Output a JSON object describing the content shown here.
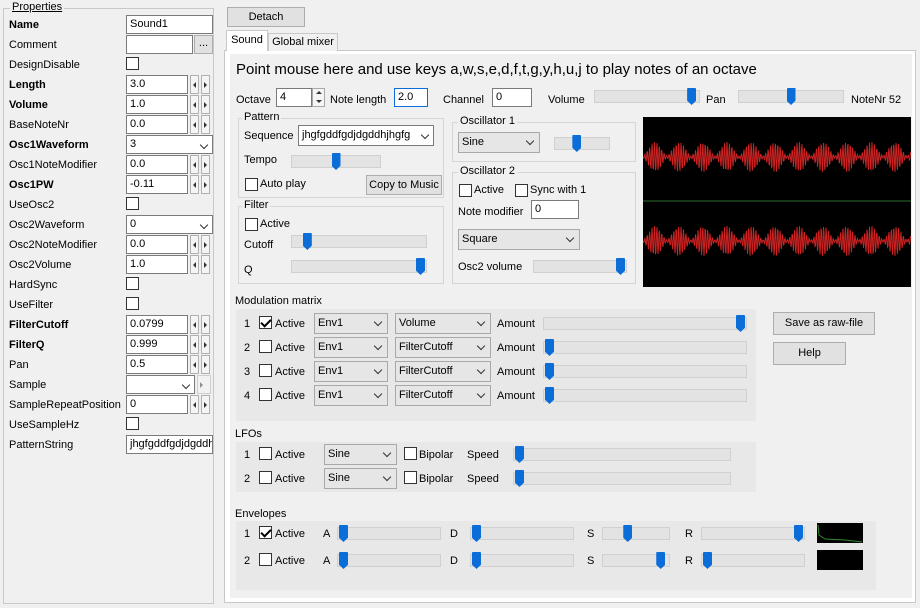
{
  "properties": {
    "title": "Properties",
    "rows": [
      {
        "label": "Name",
        "bold": true,
        "value": "Sound1",
        "kind": "text"
      },
      {
        "label": "Comment",
        "bold": false,
        "value": "",
        "kind": "textbtn",
        "btn": "..."
      },
      {
        "label": "DesignDisable",
        "bold": false,
        "kind": "check",
        "checked": false
      },
      {
        "label": "Length",
        "bold": true,
        "value": "3.0",
        "kind": "spin"
      },
      {
        "label": "Volume",
        "bold": true,
        "value": "1.0",
        "kind": "spin"
      },
      {
        "label": "BaseNoteNr",
        "bold": false,
        "value": "0.0",
        "kind": "spin"
      },
      {
        "label": "Osc1Waveform",
        "bold": true,
        "value": "3",
        "kind": "combo"
      },
      {
        "label": "Osc1NoteModifier",
        "bold": false,
        "value": "0.0",
        "kind": "spin"
      },
      {
        "label": "Osc1PW",
        "bold": true,
        "value": "-0.11",
        "kind": "spin"
      },
      {
        "label": "UseOsc2",
        "bold": false,
        "kind": "check",
        "checked": false
      },
      {
        "label": "Osc2Waveform",
        "bold": false,
        "value": "0",
        "kind": "combo"
      },
      {
        "label": "Osc2NoteModifier",
        "bold": false,
        "value": "0.0",
        "kind": "spin"
      },
      {
        "label": "Osc2Volume",
        "bold": false,
        "value": "1.0",
        "kind": "spin"
      },
      {
        "label": "HardSync",
        "bold": false,
        "kind": "check",
        "checked": false
      },
      {
        "label": "UseFilter",
        "bold": false,
        "kind": "check",
        "checked": false
      },
      {
        "label": "FilterCutoff",
        "bold": true,
        "value": "0.0799",
        "kind": "spin"
      },
      {
        "label": "FilterQ",
        "bold": true,
        "value": "0.999",
        "kind": "spin"
      },
      {
        "label": "Pan",
        "bold": false,
        "value": "0.5",
        "kind": "spin"
      },
      {
        "label": "Sample",
        "bold": false,
        "value": "",
        "kind": "combogray"
      },
      {
        "label": "SampleRepeatPosition",
        "bold": false,
        "value": "0",
        "kind": "spin"
      },
      {
        "label": "UseSampleHz",
        "bold": false,
        "kind": "check",
        "checked": false
      },
      {
        "label": "PatternString",
        "bold": false,
        "value": "jhgfgddfgdjdgddh",
        "kind": "text"
      }
    ]
  },
  "detach_label": "Detach",
  "tabs": [
    {
      "label": "Sound",
      "active": true
    },
    {
      "label": "Global mixer",
      "active": false
    }
  ],
  "instruction": "Point mouse here and use keys a,w,s,e,d,f,t,g,y,h,u,j to play notes of an octave",
  "top": {
    "octave_label": "Octave",
    "octave": "4",
    "notelength_label": "Note length",
    "notelength": "2.0",
    "channel_label": "Channel",
    "channel": "0",
    "volume_label": "Volume",
    "volume_level": 0.98,
    "pan_label": "Pan",
    "pan_level": 0.5,
    "notenr_label": "NoteNr 52"
  },
  "pattern": {
    "title": "Pattern",
    "sequence_label": "Sequence",
    "sequence": "jhgfgddfgdjdgddhjhgfg",
    "tempo_label": "Tempo",
    "tempo_level": 0.5,
    "autoplay_label": "Auto play",
    "autoplay": false,
    "copy_label": "Copy to Music"
  },
  "filter": {
    "title": "Filter",
    "active_label": "Active",
    "active": false,
    "cutoff_label": "Cutoff",
    "cutoff_level": 0.08,
    "q_label": "Q",
    "q_level": 1.0
  },
  "osc1": {
    "title": "Oscillator 1",
    "waveform": "Sine",
    "level": 0.38
  },
  "osc2": {
    "title": "Oscillator 2",
    "active_label": "Active",
    "active": false,
    "sync_label": "Sync with 1",
    "sync": false,
    "notemod_label": "Note modifier",
    "notemod": "0",
    "waveform": "Square",
    "vol_label": "Osc2 volume",
    "vol_level": 1.0
  },
  "modulation": {
    "title": "Modulation matrix",
    "amount_label": "Amount",
    "active_label": "Active",
    "rows": [
      {
        "n": "1",
        "active": true,
        "source": "Env1",
        "target": "Volume",
        "level": 1.0
      },
      {
        "n": "2",
        "active": false,
        "source": "Env1",
        "target": "FilterCutoff",
        "level": 0.0
      },
      {
        "n": "3",
        "active": false,
        "source": "Env1",
        "target": "FilterCutoff",
        "level": 0.0
      },
      {
        "n": "4",
        "active": false,
        "source": "Env1",
        "target": "FilterCutoff",
        "level": 0.0
      }
    ]
  },
  "save_raw_label": "Save as raw-file",
  "help_label": "Help",
  "lfos": {
    "title": "LFOs",
    "active_label": "Active",
    "bipolar_label": "Bipolar",
    "speed_label": "Speed",
    "rows": [
      {
        "n": "1",
        "active": false,
        "wave": "Sine",
        "bipolar": false,
        "speed_level": 0.0
      },
      {
        "n": "2",
        "active": false,
        "wave": "Sine",
        "bipolar": false,
        "speed_level": 0.0
      }
    ]
  },
  "envelopes": {
    "title": "Envelopes",
    "active_label": "Active",
    "a": "A",
    "d": "D",
    "s": "S",
    "r": "R",
    "rows": [
      {
        "n": "1",
        "active": true,
        "a_level": 0.0,
        "d_level": 0.0,
        "s_level": 0.35,
        "r_level": 1.0
      },
      {
        "n": "2",
        "active": false,
        "a_level": 0.0,
        "d_level": 0.0,
        "s_level": 0.95,
        "r_level": 0.0
      }
    ]
  },
  "colors": {
    "waveform_bg": "#000000",
    "waveform_line": "#cc2222",
    "thumb": "#0b6ed8",
    "divider": "#2a6e2a",
    "env_line": "#2e8b2e"
  }
}
